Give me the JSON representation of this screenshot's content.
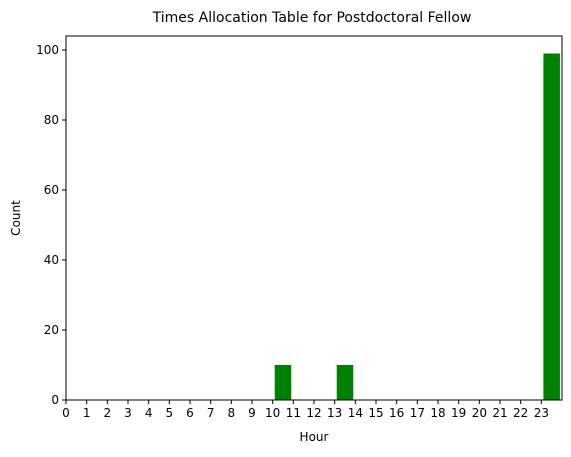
{
  "chart_data": {
    "type": "bar",
    "title": "Times Allocation Table for Postdoctoral Fellow",
    "xlabel": "Hour",
    "ylabel": "Count",
    "categories": [
      0,
      1,
      2,
      3,
      4,
      5,
      6,
      7,
      8,
      9,
      10,
      11,
      12,
      13,
      14,
      15,
      16,
      17,
      18,
      19,
      20,
      21,
      22,
      23
    ],
    "values": [
      0,
      0,
      0,
      0,
      0,
      0,
      0,
      0,
      0,
      0,
      10,
      0,
      0,
      10,
      0,
      0,
      0,
      0,
      0,
      0,
      0,
      0,
      0,
      99
    ],
    "xlim": [
      0,
      24
    ],
    "ylim": [
      0,
      104
    ],
    "y_ticks": [
      0,
      20,
      40,
      60,
      80,
      100
    ],
    "x_ticks": [
      "0",
      "1",
      "2",
      "3",
      "4",
      "5",
      "6",
      "7",
      "8",
      "9",
      "10",
      "11",
      "12",
      "13",
      "14",
      "15",
      "16",
      "17",
      "18",
      "19",
      "20",
      "21",
      "22",
      "23"
    ],
    "bar_color": "#008000",
    "grid": false,
    "legend": false
  }
}
